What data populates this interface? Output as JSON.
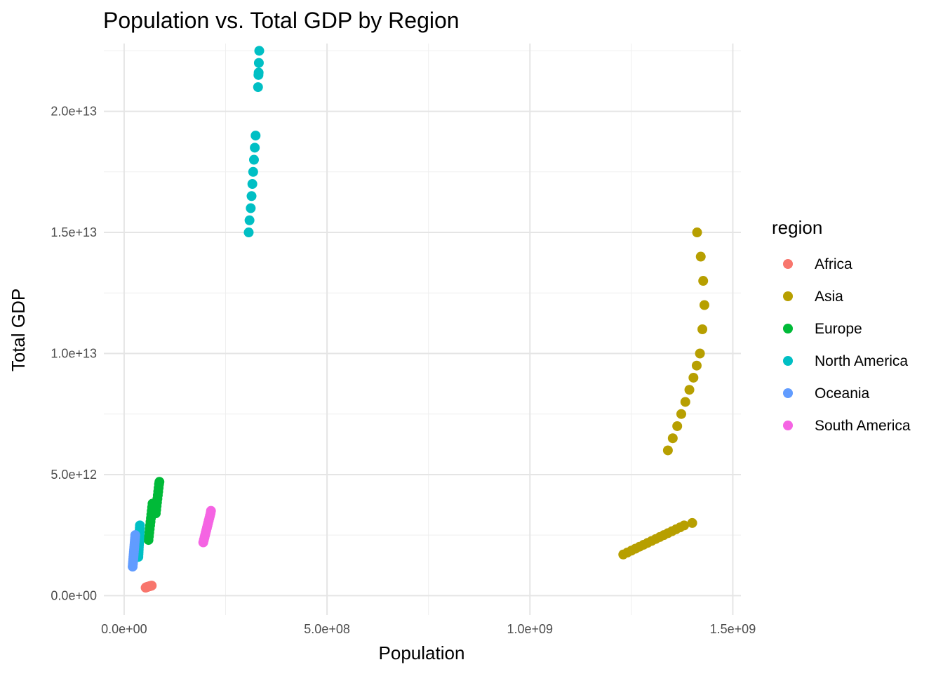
{
  "chart_data": {
    "type": "scatter",
    "title": "Population vs. Total GDP by Region",
    "xlabel": "Population",
    "ylabel": "Total GDP",
    "xlim": [
      -50000000,
      1520000000
    ],
    "ylim": [
      -800000000000,
      22800000000000
    ],
    "x_ticks": [
      {
        "value": 0,
        "label": "0.0e+00"
      },
      {
        "value": 500000000,
        "label": "5.0e+08"
      },
      {
        "value": 1000000000,
        "label": "1.0e+09"
      },
      {
        "value": 1500000000,
        "label": "1.5e+09"
      }
    ],
    "y_ticks": [
      {
        "value": 0,
        "label": "0.0e+00"
      },
      {
        "value": 5000000000000,
        "label": "5.0e+12"
      },
      {
        "value": 10000000000000,
        "label": "1.0e+13"
      },
      {
        "value": 15000000000000,
        "label": "1.5e+13"
      },
      {
        "value": 20000000000000,
        "label": "2.0e+13"
      }
    ],
    "grid": true,
    "legend": {
      "title": "region",
      "position": "right"
    },
    "series": [
      {
        "name": "Africa",
        "color": "#F8766D",
        "points": [
          [
            53000000,
            330000000000
          ],
          [
            54000000,
            340000000000
          ],
          [
            55000000,
            350000000000
          ],
          [
            56000000,
            355000000000
          ],
          [
            57000000,
            360000000000
          ],
          [
            58000000,
            365000000000
          ],
          [
            59000000,
            370000000000
          ],
          [
            60000000,
            375000000000
          ],
          [
            61000000,
            380000000000
          ],
          [
            62000000,
            385000000000
          ],
          [
            63000000,
            390000000000
          ],
          [
            64000000,
            395000000000
          ],
          [
            65000000,
            400000000000
          ],
          [
            66000000,
            405000000000
          ],
          [
            67000000,
            410000000000
          ],
          [
            68000000,
            415000000000
          ]
        ]
      },
      {
        "name": "Asia",
        "color": "#B79F00",
        "points": [
          [
            1230000000,
            1700000000000
          ],
          [
            1240000000,
            1780000000000
          ],
          [
            1250000000,
            1860000000000
          ],
          [
            1260000000,
            1940000000000
          ],
          [
            1270000000,
            2020000000000
          ],
          [
            1280000000,
            2100000000000
          ],
          [
            1290000000,
            2180000000000
          ],
          [
            1300000000,
            2260000000000
          ],
          [
            1310000000,
            2340000000000
          ],
          [
            1320000000,
            2420000000000
          ],
          [
            1330000000,
            2500000000000
          ],
          [
            1340000000,
            2580000000000
          ],
          [
            1350000000,
            2660000000000
          ],
          [
            1360000000,
            2740000000000
          ],
          [
            1370000000,
            2820000000000
          ],
          [
            1380000000,
            2900000000000
          ],
          [
            1400000000,
            3000000000000
          ],
          [
            1340000000,
            6000000000000
          ],
          [
            1352000000,
            6500000000000
          ],
          [
            1363000000,
            7000000000000
          ],
          [
            1373000000,
            7500000000000
          ],
          [
            1383000000,
            8000000000000
          ],
          [
            1393000000,
            8500000000000
          ],
          [
            1403000000,
            9000000000000
          ],
          [
            1411000000,
            9500000000000
          ],
          [
            1419000000,
            10000000000000
          ],
          [
            1425000000,
            11000000000000
          ],
          [
            1430000000,
            12000000000000
          ],
          [
            1427000000,
            13000000000000
          ],
          [
            1421000000,
            14000000000000
          ],
          [
            1412000000,
            15000000000000
          ]
        ]
      },
      {
        "name": "Europe",
        "color": "#00BA38",
        "points": [
          [
            60000000,
            2300000000000
          ],
          [
            61000000,
            2450000000000
          ],
          [
            62000000,
            2600000000000
          ],
          [
            63000000,
            2750000000000
          ],
          [
            64000000,
            2900000000000
          ],
          [
            65000000,
            3050000000000
          ],
          [
            66000000,
            3200000000000
          ],
          [
            67000000,
            3350000000000
          ],
          [
            68000000,
            3500000000000
          ],
          [
            69000000,
            3650000000000
          ],
          [
            70000000,
            3800000000000
          ],
          [
            78000000,
            3400000000000
          ],
          [
            79000000,
            3550000000000
          ],
          [
            80000000,
            3700000000000
          ],
          [
            81000000,
            3850000000000
          ],
          [
            82000000,
            4000000000000
          ],
          [
            83000000,
            4150000000000
          ],
          [
            84000000,
            4300000000000
          ],
          [
            85000000,
            4450000000000
          ],
          [
            86000000,
            4600000000000
          ],
          [
            87000000,
            4700000000000
          ]
        ]
      },
      {
        "name": "North America",
        "color": "#00BFC4",
        "points": [
          [
            35000000,
            1600000000000
          ],
          [
            35300000,
            1700000000000
          ],
          [
            35600000,
            1800000000000
          ],
          [
            35900000,
            1900000000000
          ],
          [
            36200000,
            2000000000000
          ],
          [
            36500000,
            2100000000000
          ],
          [
            36800000,
            2200000000000
          ],
          [
            37100000,
            2300000000000
          ],
          [
            37400000,
            2400000000000
          ],
          [
            37700000,
            2500000000000
          ],
          [
            38000000,
            2600000000000
          ],
          [
            38300000,
            2700000000000
          ],
          [
            38600000,
            2800000000000
          ],
          [
            38900000,
            2900000000000
          ],
          [
            307000000,
            15000000000000
          ],
          [
            309000000,
            15500000000000
          ],
          [
            312000000,
            16000000000000
          ],
          [
            314000000,
            16500000000000
          ],
          [
            316000000,
            17000000000000
          ],
          [
            318000000,
            17500000000000
          ],
          [
            320000000,
            18000000000000
          ],
          [
            322000000,
            18500000000000
          ],
          [
            324000000,
            19000000000000
          ],
          [
            330000000,
            21000000000000
          ],
          [
            331000000,
            21500000000000
          ],
          [
            331500000,
            21600000000000
          ],
          [
            332000000,
            22000000000000
          ],
          [
            333000000,
            22500000000000
          ]
        ]
      },
      {
        "name": "Oceania",
        "color": "#619CFF",
        "points": [
          [
            21000000,
            1200000000000
          ],
          [
            21500000,
            1300000000000
          ],
          [
            22000000,
            1400000000000
          ],
          [
            22500000,
            1500000000000
          ],
          [
            23000000,
            1600000000000
          ],
          [
            23500000,
            1700000000000
          ],
          [
            24000000,
            1800000000000
          ],
          [
            24500000,
            1900000000000
          ],
          [
            25000000,
            2000000000000
          ],
          [
            25500000,
            2100000000000
          ],
          [
            26000000,
            2200000000000
          ],
          [
            26500000,
            2300000000000
          ],
          [
            27000000,
            2400000000000
          ],
          [
            27500000,
            2500000000000
          ]
        ]
      },
      {
        "name": "South America",
        "color": "#F564E3",
        "points": [
          [
            195000000,
            2200000000000
          ],
          [
            196500000,
            2300000000000
          ],
          [
            198000000,
            2400000000000
          ],
          [
            199500000,
            2500000000000
          ],
          [
            201000000,
            2600000000000
          ],
          [
            202500000,
            2700000000000
          ],
          [
            204000000,
            2800000000000
          ],
          [
            205500000,
            2900000000000
          ],
          [
            207000000,
            3000000000000
          ],
          [
            208500000,
            3100000000000
          ],
          [
            210000000,
            3200000000000
          ],
          [
            211500000,
            3300000000000
          ],
          [
            213000000,
            3400000000000
          ],
          [
            214000000,
            3500000000000
          ]
        ]
      }
    ]
  }
}
